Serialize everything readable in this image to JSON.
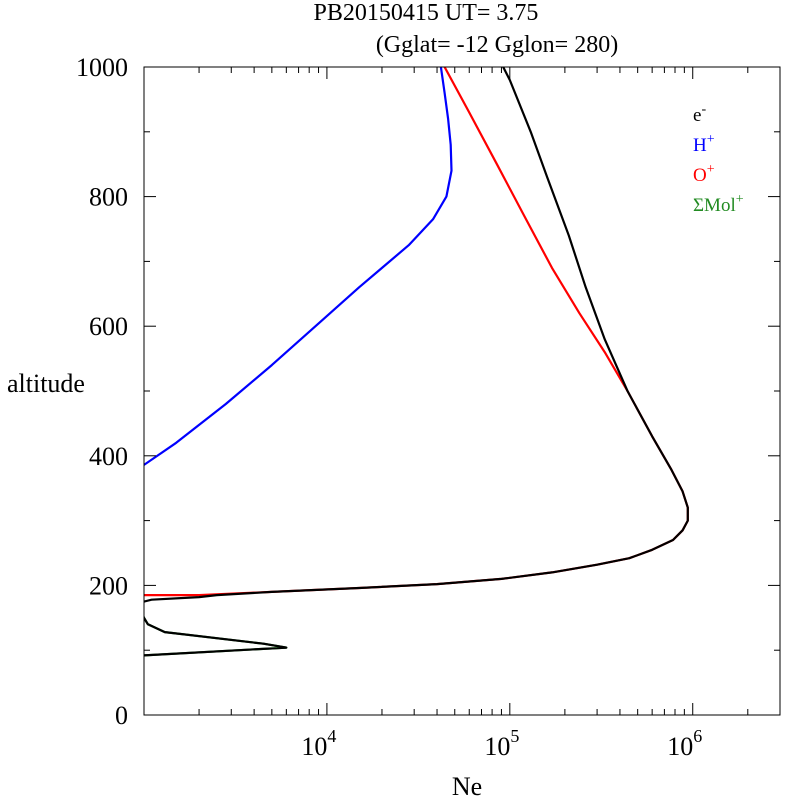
{
  "chart_data": {
    "type": "line",
    "title": "PB20150415   UT=  3.75",
    "subtitle": "(Gglat= -12   Gglon=  280)",
    "xlabel": "Ne",
    "ylabel": "altitude",
    "x_scale": "log",
    "xlim": [
      1000,
      3000000
    ],
    "ylim": [
      0,
      1000
    ],
    "y_ticks": [
      0,
      200,
      400,
      600,
      800,
      1000
    ],
    "x_ticks": [
      {
        "value": 10000,
        "base": "10",
        "exp": "4"
      },
      {
        "value": 100000,
        "base": "10",
        "exp": "5"
      },
      {
        "value": 1000000,
        "base": "10",
        "exp": "6"
      }
    ],
    "grid": false,
    "legend_position": "top-right",
    "series": [
      {
        "name": "e",
        "name_sup": "-",
        "color": "#000000",
        "points": [
          [
            1000,
            92
          ],
          [
            6000,
            104
          ],
          [
            4500,
            110
          ],
          [
            1300,
            128
          ],
          [
            1050,
            140
          ],
          [
            1000,
            150
          ],
          [
            950,
            165
          ],
          [
            1000,
            175
          ],
          [
            1100,
            178
          ],
          [
            2000,
            182
          ],
          [
            2500,
            185
          ],
          [
            5000,
            190
          ],
          [
            15000,
            196
          ],
          [
            40000,
            202
          ],
          [
            90000,
            210
          ],
          [
            170000,
            220
          ],
          [
            300000,
            232
          ],
          [
            450000,
            242
          ],
          [
            600000,
            255
          ],
          [
            780000,
            270
          ],
          [
            880000,
            285
          ],
          [
            940000,
            300
          ],
          [
            940000,
            320
          ],
          [
            880000,
            345
          ],
          [
            760000,
            380
          ],
          [
            600000,
            430
          ],
          [
            440000,
            500
          ],
          [
            330000,
            580
          ],
          [
            260000,
            660
          ],
          [
            210000,
            740
          ],
          [
            160000,
            830
          ],
          [
            130000,
            900
          ],
          [
            100000,
            980
          ],
          [
            92000,
            1000
          ]
        ]
      },
      {
        "name": "H",
        "name_sup": "+",
        "color": "#0000ff",
        "points": [
          [
            1000,
            386
          ],
          [
            1500,
            420
          ],
          [
            2800,
            480
          ],
          [
            5000,
            540
          ],
          [
            9500,
            610
          ],
          [
            15000,
            660
          ],
          [
            20000,
            690
          ],
          [
            28000,
            725
          ],
          [
            38000,
            765
          ],
          [
            45000,
            800
          ],
          [
            48000,
            840
          ],
          [
            47500,
            880
          ],
          [
            46000,
            920
          ],
          [
            44000,
            960
          ],
          [
            42000,
            1000
          ]
        ]
      },
      {
        "name": "O",
        "name_sup": "+",
        "color": "#ff0000",
        "points": [
          [
            1000,
            185
          ],
          [
            2000,
            185
          ],
          [
            5000,
            190
          ],
          [
            15000,
            196
          ],
          [
            40000,
            202
          ],
          [
            90000,
            210
          ],
          [
            170000,
            220
          ],
          [
            300000,
            232
          ],
          [
            450000,
            242
          ],
          [
            600000,
            255
          ],
          [
            780000,
            270
          ],
          [
            880000,
            285
          ],
          [
            940000,
            300
          ],
          [
            940000,
            320
          ],
          [
            880000,
            345
          ],
          [
            760000,
            380
          ],
          [
            600000,
            430
          ],
          [
            440000,
            500
          ],
          [
            330000,
            560
          ],
          [
            240000,
            620
          ],
          [
            170000,
            690
          ],
          [
            120000,
            770
          ],
          [
            85000,
            850
          ],
          [
            60000,
            930
          ],
          [
            44000,
            1000
          ]
        ]
      },
      {
        "name": "ΣMol",
        "name_sup": "+",
        "color": "#228b22",
        "points": [
          [
            1000,
            92
          ],
          [
            6000,
            104
          ],
          [
            4500,
            110
          ],
          [
            1300,
            128
          ],
          [
            1050,
            140
          ],
          [
            1000,
            150
          ],
          [
            950,
            165
          ],
          [
            880,
            185
          ],
          [
            850,
            200
          ]
        ]
      }
    ]
  }
}
